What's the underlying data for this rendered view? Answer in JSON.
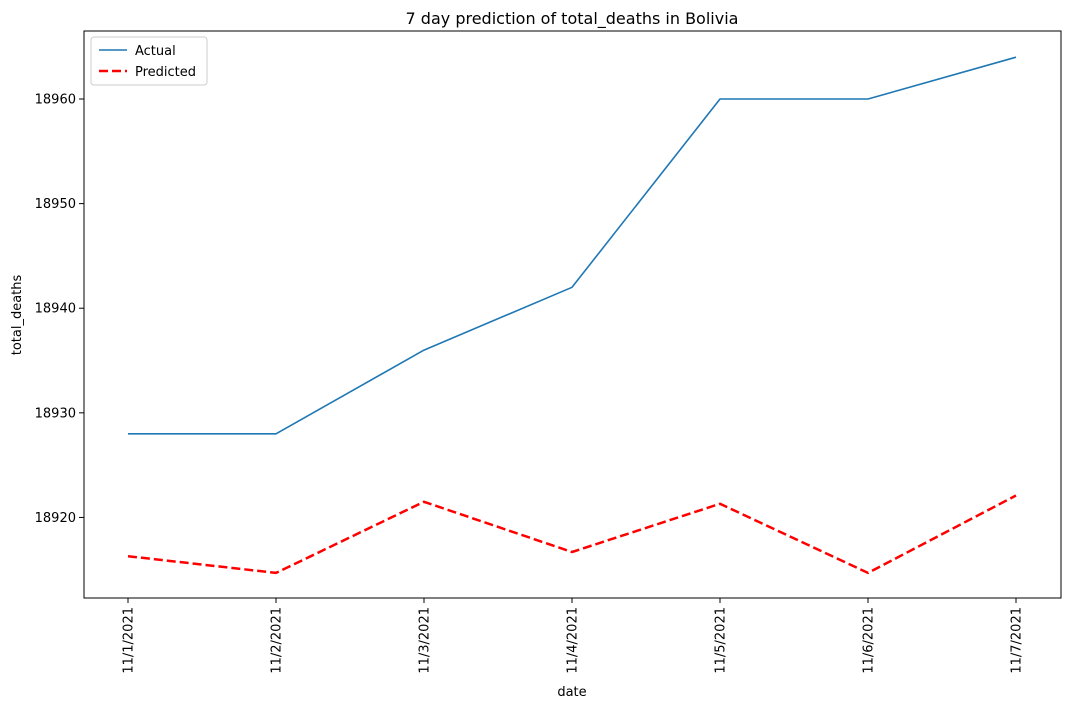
{
  "chart_data": {
    "type": "line",
    "title": "7 day prediction of total_deaths in Bolivia",
    "xlabel": "date",
    "ylabel": "total_deaths",
    "categories": [
      "11/1/2021",
      "11/2/2021",
      "11/3/2021",
      "11/4/2021",
      "11/5/2021",
      "11/6/2021",
      "11/7/2021"
    ],
    "ylim": [
      18912.3,
      18966.5
    ],
    "yticks": [
      18920,
      18930,
      18940,
      18950,
      18960
    ],
    "grid": false,
    "legend_position": "top-left",
    "series": [
      {
        "name": "Actual",
        "color": "#1f77b4",
        "style": "solid",
        "values": [
          18928,
          18928,
          18936,
          18942,
          18960,
          18960,
          18964
        ]
      },
      {
        "name": "Predicted",
        "color": "#ff0000",
        "style": "dashed",
        "values": [
          18916.3,
          18914.7,
          18921.5,
          18916.7,
          18921.3,
          18914.7,
          18922.1
        ]
      }
    ]
  }
}
